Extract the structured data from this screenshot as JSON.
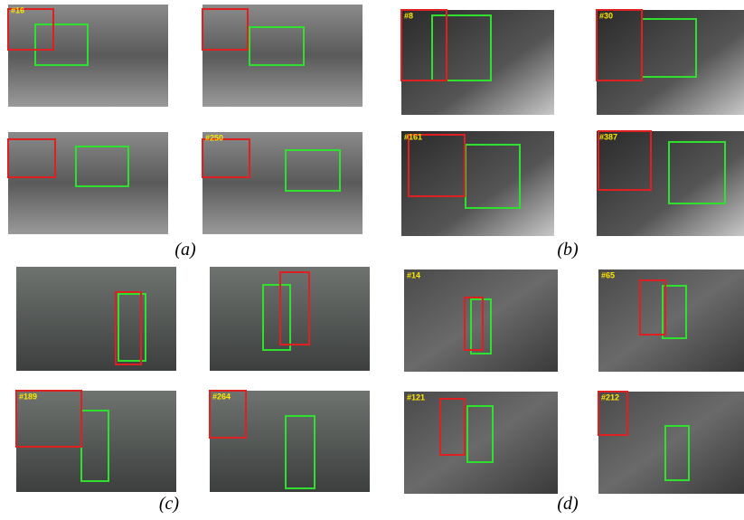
{
  "panels": [
    {
      "caption": "(a)",
      "labels": [
        "#16",
        null,
        null,
        "#250"
      ]
    },
    {
      "caption": "(b)",
      "labels": [
        "#8",
        "#30",
        "#161",
        "#387"
      ]
    },
    {
      "caption": "(c)",
      "labels": [
        null,
        null,
        "#189",
        "#264"
      ]
    },
    {
      "caption": "(d)",
      "labels": [
        "#14",
        "#65",
        "#121",
        "#212"
      ]
    }
  ]
}
